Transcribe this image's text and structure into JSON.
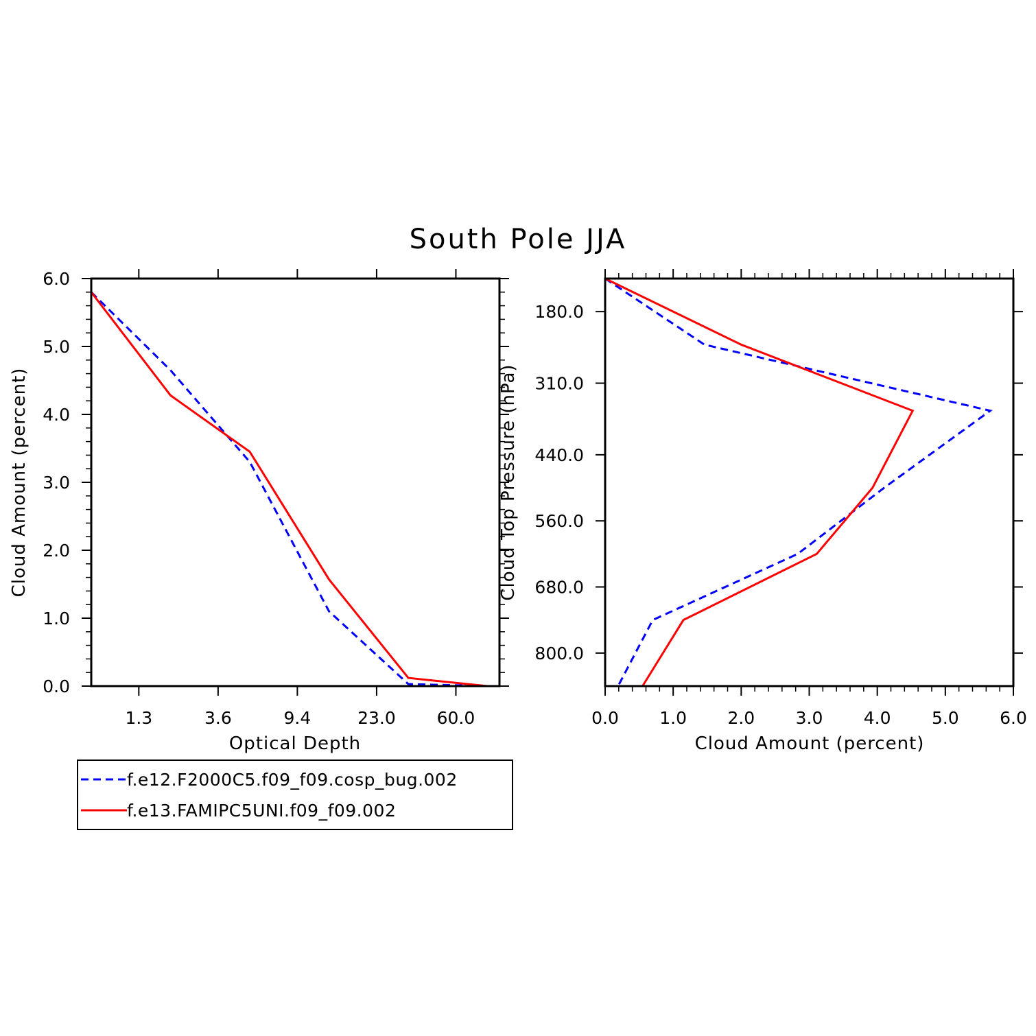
{
  "title": "South Pole JJA",
  "colors": {
    "series1": "#0000ff",
    "series2": "#ff0000",
    "axes": "#000000"
  },
  "legend": {
    "placement": "below-left",
    "entries": [
      {
        "label": "f.e12.F2000C5.f09_f09.cosp_bug.002",
        "color": "#0000ff",
        "style": "dashed"
      },
      {
        "label": "f.e13.FAMIPC5UNI.f09_f09.002",
        "color": "#ff0000",
        "style": "solid"
      }
    ]
  },
  "chart_data": [
    {
      "type": "line",
      "xlabel": "Optical Depth",
      "ylabel": "Cloud Amount (percent)",
      "x_index": [
        0,
        1,
        2,
        3,
        4,
        5
      ],
      "xlim": [
        0,
        5.15
      ],
      "x_ticks": [
        {
          "pos": 0.6,
          "label": "1.3"
        },
        {
          "pos": 1.6,
          "label": "3.6"
        },
        {
          "pos": 2.6,
          "label": "9.4"
        },
        {
          "pos": 3.6,
          "label": "23.0"
        },
        {
          "pos": 4.6,
          "label": "60.0"
        }
      ],
      "ylim": [
        0,
        6
      ],
      "y_ticks": [
        "0.0",
        "1.0",
        "2.0",
        "3.0",
        "4.0",
        "5.0",
        "6.0"
      ],
      "series": [
        {
          "name": "f.e12.F2000C5.f09_f09.cosp_bug.002",
          "values": [
            5.8,
            4.65,
            3.3,
            1.1,
            0.03,
            0.0
          ]
        },
        {
          "name": "f.e13.FAMIPC5UNI.f09_f09.002",
          "values": [
            5.8,
            4.28,
            3.45,
            1.57,
            0.12,
            0.0
          ]
        }
      ]
    },
    {
      "type": "line",
      "xlabel": "Cloud Amount (percent)",
      "ylabel": "Cloud Top Pressure (hPa)",
      "xlim": [
        0,
        6
      ],
      "x_ticks": [
        "0.0",
        "1.0",
        "2.0",
        "3.0",
        "4.0",
        "5.0",
        "6.0"
      ],
      "pressure_levels": [
        120,
        240,
        360,
        500,
        620,
        740,
        860
      ],
      "ylim": [
        120,
        860
      ],
      "y_ticks": [
        {
          "value": 180,
          "label": "180.0"
        },
        {
          "value": 310,
          "label": "310.0"
        },
        {
          "value": 440,
          "label": "440.0"
        },
        {
          "value": 560,
          "label": "560.0"
        },
        {
          "value": 680,
          "label": "680.0"
        },
        {
          "value": 800,
          "label": "800.0"
        }
      ],
      "series": [
        {
          "name": "f.e12.F2000C5.f09_f09.cosp_bug.002",
          "values": [
            0.0,
            1.46,
            5.66,
            4.1,
            2.83,
            0.7,
            0.19
          ]
        },
        {
          "name": "f.e13.FAMIPC5UNI.f09_f09.002",
          "values": [
            0.0,
            2.0,
            4.52,
            3.93,
            3.11,
            1.15,
            0.55
          ]
        }
      ]
    }
  ]
}
